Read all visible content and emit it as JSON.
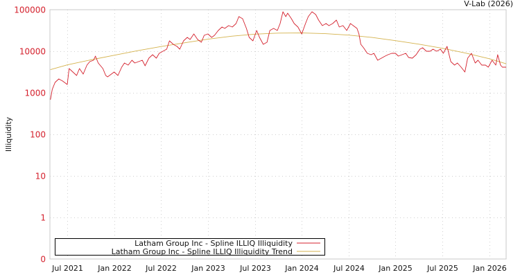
{
  "chart_data": {
    "type": "line",
    "title": "",
    "credit": "V-Lab (2026)",
    "xlabel": "",
    "ylabel": "Illiquidity",
    "yscale": "log",
    "ylim": [
      0.1,
      100000
    ],
    "xlim": [
      2021.315,
      2026.18
    ],
    "grid": true,
    "legend_position": "bottom-left",
    "y_ticks": [
      {
        "value": 100000,
        "label": "100000"
      },
      {
        "value": 10000,
        "label": "10000"
      },
      {
        "value": 1000,
        "label": "1000"
      },
      {
        "value": 100,
        "label": "100"
      },
      {
        "value": 10,
        "label": "10"
      },
      {
        "value": 1,
        "label": "1"
      },
      {
        "value": 0.1,
        "label": "0"
      }
    ],
    "x_ticks": [
      {
        "value": 2021.5,
        "label": "Jul 2021"
      },
      {
        "value": 2022.0,
        "label": "Jan 2022"
      },
      {
        "value": 2022.5,
        "label": "Jul 2022"
      },
      {
        "value": 2023.0,
        "label": "Jan 2023"
      },
      {
        "value": 2023.5,
        "label": "Jul 2023"
      },
      {
        "value": 2024.0,
        "label": "Jan 2024"
      },
      {
        "value": 2024.5,
        "label": "Jul 2024"
      },
      {
        "value": 2025.0,
        "label": "Jan 2025"
      },
      {
        "value": 2025.5,
        "label": "Jul 2025"
      },
      {
        "value": 2026.0,
        "label": "Jan 2026"
      }
    ],
    "series": [
      {
        "name": "Latham Group Inc - Spline ILLIQ Illiquidity",
        "color": "#d4202c",
        "x": [
          2021.32,
          2021.34,
          2021.37,
          2021.41,
          2021.45,
          2021.5,
          2021.52,
          2021.56,
          2021.6,
          2021.63,
          2021.67,
          2021.71,
          2021.74,
          2021.78,
          2021.8,
          2021.83,
          2021.88,
          2021.91,
          2021.93,
          2021.97,
          2022.0,
          2022.04,
          2022.08,
          2022.11,
          2022.15,
          2022.19,
          2022.22,
          2022.26,
          2022.3,
          2022.33,
          2022.37,
          2022.41,
          2022.45,
          2022.48,
          2022.52,
          2022.56,
          2022.59,
          2022.63,
          2022.67,
          2022.7,
          2022.74,
          2022.78,
          2022.81,
          2022.85,
          2022.89,
          2022.93,
          2022.96,
          2023.0,
          2023.04,
          2023.07,
          2023.11,
          2023.15,
          2023.18,
          2023.22,
          2023.26,
          2023.3,
          2023.33,
          2023.37,
          2023.41,
          2023.44,
          2023.48,
          2023.52,
          2023.55,
          2023.59,
          2023.63,
          2023.66,
          2023.7,
          2023.74,
          2023.77,
          2023.8,
          2023.83,
          2023.85,
          2023.89,
          2023.92,
          2023.96,
          2024.0,
          2024.04,
          2024.07,
          2024.11,
          2024.15,
          2024.18,
          2024.22,
          2024.26,
          2024.29,
          2024.33,
          2024.37,
          2024.4,
          2024.44,
          2024.48,
          2024.52,
          2024.55,
          2024.59,
          2024.61,
          2024.63,
          2024.66,
          2024.7,
          2024.74,
          2024.77,
          2024.81,
          2024.85,
          2024.89,
          2024.92,
          2024.96,
          2025.0,
          2025.03,
          2025.07,
          2025.11,
          2025.14,
          2025.18,
          2025.22,
          2025.26,
          2025.29,
          2025.33,
          2025.37,
          2025.4,
          2025.44,
          2025.48,
          2025.51,
          2025.55,
          2025.59,
          2025.63,
          2025.66,
          2025.7,
          2025.74,
          2025.77,
          2025.81,
          2025.85,
          2025.88,
          2025.92,
          2025.96,
          2025.99,
          2026.03,
          2026.07,
          2026.09,
          2026.12,
          2026.14,
          2026.18
        ],
        "values": [
          681,
          1212,
          1778,
          2154,
          1920,
          1585,
          3831,
          3162,
          2610,
          3831,
          2818,
          4642,
          5623,
          6070,
          7640,
          5207,
          3831,
          2610,
          2415,
          2818,
          3162,
          2610,
          4140,
          5207,
          4642,
          6070,
          5207,
          5623,
          6070,
          4467,
          6813,
          8254,
          6813,
          8913,
          10000,
          11220,
          17780,
          14680,
          13090,
          11220,
          17780,
          21540,
          19200,
          26100,
          19200,
          16460,
          24150,
          26100,
          21540,
          24150,
          31620,
          38310,
          35480,
          41400,
          38310,
          46420,
          68130,
          60700,
          35480,
          21540,
          17780,
          31620,
          21540,
          14680,
          16460,
          31620,
          35480,
          31620,
          46420,
          89125,
          68130,
          82540,
          60700,
          46420,
          38310,
          26100,
          46420,
          68130,
          89125,
          76400,
          56230,
          41400,
          46420,
          41400,
          46420,
          56230,
          38310,
          41400,
          31620,
          46420,
          41400,
          35480,
          26100,
          14680,
          12120,
          8913,
          8254,
          8913,
          6070,
          6813,
          7640,
          8254,
          8913,
          8913,
          7640,
          8254,
          8913,
          7079,
          6813,
          8254,
          11220,
          12120,
          10000,
          10000,
          11220,
          10000,
          11220,
          8913,
          13090,
          5623,
          4642,
          5207,
          4140,
          3162,
          6813,
          8913,
          5207,
          6070,
          4642,
          4642,
          4140,
          6070,
          4642,
          8254,
          4642,
          4140,
          4140
        ]
      },
      {
        "name": "Latham Group Inc - Spline ILLIQ Illiquidity Trend",
        "color": "#d4b24c",
        "x": [
          2021.32,
          2021.5,
          2021.75,
          2022.0,
          2022.25,
          2022.5,
          2022.75,
          2023.0,
          2023.25,
          2023.5,
          2023.75,
          2024.0,
          2024.25,
          2024.5,
          2024.75,
          2025.0,
          2025.25,
          2025.5,
          2025.75,
          2026.0,
          2026.18
        ],
        "values": [
          3600,
          4700,
          6200,
          8000,
          10300,
          13000,
          16000,
          19500,
          23000,
          25800,
          27300,
          27500,
          26500,
          24500,
          21500,
          18000,
          14800,
          11800,
          9000,
          6600,
          5000
        ]
      }
    ]
  }
}
